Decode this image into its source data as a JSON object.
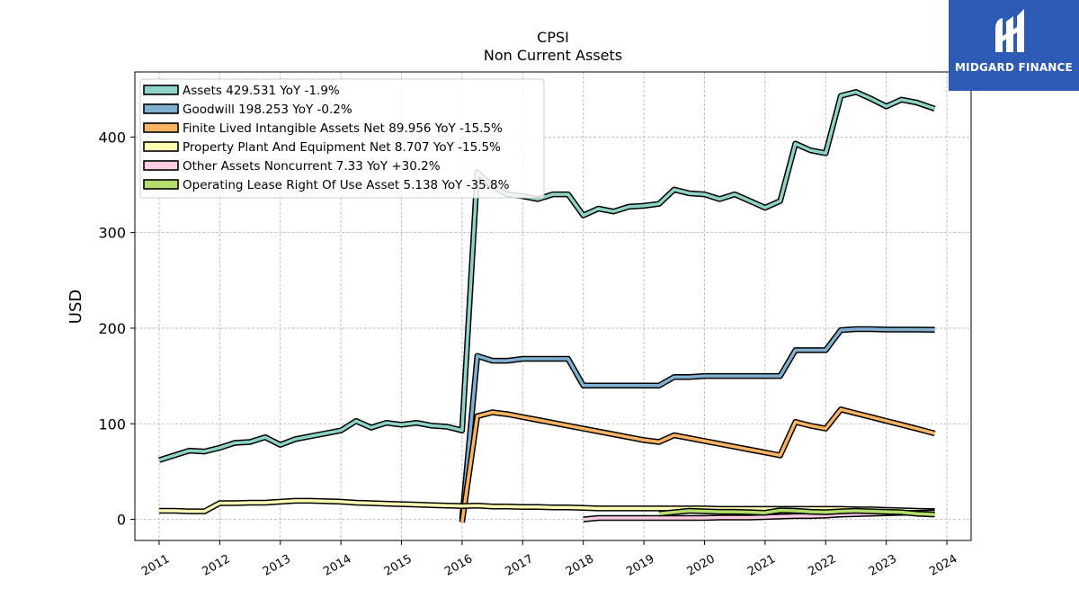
{
  "chart_data": {
    "type": "line",
    "title": "CPSI",
    "subtitle": "Non Current  Assets",
    "ylabel": "USD",
    "xlabel": "",
    "xlim": [
      2010.6,
      2024.4
    ],
    "ylim": [
      -22,
      468
    ],
    "yticks": [
      0,
      100,
      200,
      300,
      400
    ],
    "xticks": [
      2011,
      2012,
      2013,
      2014,
      2015,
      2016,
      2017,
      2018,
      2019,
      2020,
      2021,
      2022,
      2023,
      2024
    ],
    "grid": true,
    "legend_position": "top-left",
    "series": [
      {
        "name": "Assets  429.531 YoY -1.9%",
        "color": "#8dd3c7",
        "x": [
          2011.0,
          2011.25,
          2011.5,
          2011.75,
          2012.0,
          2012.25,
          2012.5,
          2012.75,
          2013.0,
          2013.25,
          2013.5,
          2013.75,
          2014.0,
          2014.25,
          2014.5,
          2014.75,
          2015.0,
          2015.25,
          2015.5,
          2015.75,
          2016.0,
          2016.25,
          2016.5,
          2016.75,
          2017.0,
          2017.25,
          2017.5,
          2017.75,
          2018.0,
          2018.25,
          2018.5,
          2018.75,
          2019.0,
          2019.25,
          2019.5,
          2019.75,
          2020.0,
          2020.25,
          2020.5,
          2020.75,
          2021.0,
          2021.25,
          2021.5,
          2021.75,
          2022.0,
          2022.25,
          2022.5,
          2022.75,
          2023.0,
          2023.25,
          2023.5,
          2023.8
        ],
        "values": [
          62,
          67,
          72,
          71,
          75,
          80,
          81,
          86,
          78,
          84,
          87,
          90,
          93,
          103,
          96,
          101,
          99,
          101,
          98,
          97,
          93,
          363,
          348,
          340,
          338,
          335,
          340,
          340,
          318,
          325,
          322,
          327,
          328,
          330,
          345,
          341,
          340,
          335,
          340,
          333,
          326,
          333,
          393,
          386,
          383,
          443,
          447,
          440,
          432,
          439,
          436,
          429.531
        ]
      },
      {
        "name": "Goodwill  198.253 YoY -0.2%",
        "color": "#80b1d3",
        "x": [
          2016.0,
          2016.25,
          2016.5,
          2016.75,
          2017.0,
          2017.25,
          2017.5,
          2017.75,
          2018.0,
          2018.25,
          2018.5,
          2018.75,
          2019.0,
          2019.25,
          2019.5,
          2019.75,
          2020.0,
          2020.25,
          2020.5,
          2020.75,
          2021.0,
          2021.25,
          2021.5,
          2021.75,
          2022.0,
          2022.25,
          2022.5,
          2022.75,
          2023.0,
          2023.25,
          2023.5,
          2023.8
        ],
        "values": [
          0,
          171,
          166,
          166,
          168,
          168,
          168,
          168,
          140,
          140,
          140,
          140,
          140,
          140,
          149,
          149,
          150,
          150,
          150,
          150,
          150,
          150,
          177,
          177,
          177,
          198,
          199,
          199,
          198.5,
          198.5,
          198.5,
          198.253
        ]
      },
      {
        "name": "Finite Lived Intangible Assets Net  89.956 YoY -15.5%",
        "color": "#fdb462",
        "x": [
          2016.0,
          2016.25,
          2016.5,
          2016.75,
          2017.0,
          2017.25,
          2017.5,
          2017.75,
          2018.0,
          2018.25,
          2018.5,
          2018.75,
          2019.0,
          2019.25,
          2019.5,
          2019.75,
          2020.0,
          2020.25,
          2020.5,
          2020.75,
          2021.0,
          2021.25,
          2021.5,
          2021.75,
          2022.0,
          2022.25,
          2022.5,
          2022.75,
          2023.0,
          2023.25,
          2023.5,
          2023.8
        ],
        "values": [
          -3,
          108,
          112,
          110,
          107,
          104,
          101,
          98,
          95,
          92,
          89,
          86,
          83,
          81,
          88,
          85,
          82,
          79,
          76,
          73,
          70,
          67,
          102,
          98,
          95,
          115,
          111,
          107,
          103,
          99,
          95,
          89.956
        ]
      },
      {
        "name": "Property Plant And Equipment Net  8.707 YoY -15.5%",
        "color": "#ffffb3",
        "x": [
          2011.0,
          2011.25,
          2011.5,
          2011.75,
          2012.0,
          2012.25,
          2012.5,
          2012.75,
          2013.0,
          2013.25,
          2013.5,
          2013.75,
          2014.0,
          2014.25,
          2014.5,
          2014.75,
          2015.0,
          2015.25,
          2015.5,
          2015.75,
          2016.0,
          2016.25,
          2016.5,
          2016.75,
          2017.0,
          2017.25,
          2017.5,
          2017.75,
          2018.0,
          2018.25,
          2018.5,
          2018.75,
          2019.0,
          2019.25,
          2019.5,
          2019.75,
          2020.0,
          2020.25,
          2020.5,
          2020.75,
          2021.0,
          2021.25,
          2021.5,
          2021.75,
          2022.0,
          2022.25,
          2022.5,
          2022.75,
          2023.0,
          2023.25,
          2023.5,
          2023.8
        ],
        "values": [
          9,
          9,
          8.5,
          8.5,
          17,
          17,
          17.5,
          17.5,
          18.5,
          19.5,
          19.5,
          19,
          18.5,
          17.5,
          17,
          16.5,
          16,
          15.5,
          15,
          14.5,
          14,
          14.5,
          13.5,
          13.5,
          13,
          13,
          12.5,
          12.5,
          12,
          11.5,
          11.5,
          11.5,
          11.5,
          11.5,
          11.5,
          11.5,
          11.5,
          11,
          11,
          11,
          11,
          11,
          11,
          11,
          11,
          11,
          10.5,
          10.5,
          10,
          9.5,
          9,
          8.707
        ]
      },
      {
        "name": "Other Assets Noncurrent  7.33 YoY +30.2%",
        "color": "#fccde5",
        "x": [
          2018.0,
          2018.25,
          2018.5,
          2018.75,
          2019.0,
          2019.25,
          2019.5,
          2019.75,
          2020.0,
          2020.25,
          2020.5,
          2020.75,
          2021.0,
          2021.25,
          2021.5,
          2021.75,
          2022.0,
          2022.25,
          2022.5,
          2022.75,
          2023.0,
          2023.25,
          2023.5,
          2023.8
        ],
        "values": [
          0,
          1.5,
          1.5,
          1.5,
          1.5,
          1.5,
          1.5,
          1.5,
          1.5,
          2,
          2,
          2,
          2.5,
          3,
          3.5,
          3.5,
          4,
          5,
          5.5,
          6,
          6.5,
          7,
          7,
          7.33
        ]
      },
      {
        "name": "Operating Lease Right Of Use Asset  5.138 YoY -35.8%",
        "color": "#b3de69",
        "x": [
          2019.25,
          2019.5,
          2019.75,
          2020.0,
          2020.25,
          2020.5,
          2020.75,
          2021.0,
          2021.25,
          2021.5,
          2021.75,
          2022.0,
          2022.25,
          2022.5,
          2022.75,
          2023.0,
          2023.25,
          2023.5,
          2023.8
        ],
        "values": [
          6,
          7.5,
          9,
          8.5,
          8,
          8,
          7.5,
          7,
          9.5,
          9,
          8,
          7.5,
          8.5,
          9,
          8.5,
          8,
          7.5,
          6,
          5.138
        ]
      }
    ]
  },
  "logo": {
    "text": "MIDGARD FINANCE"
  }
}
